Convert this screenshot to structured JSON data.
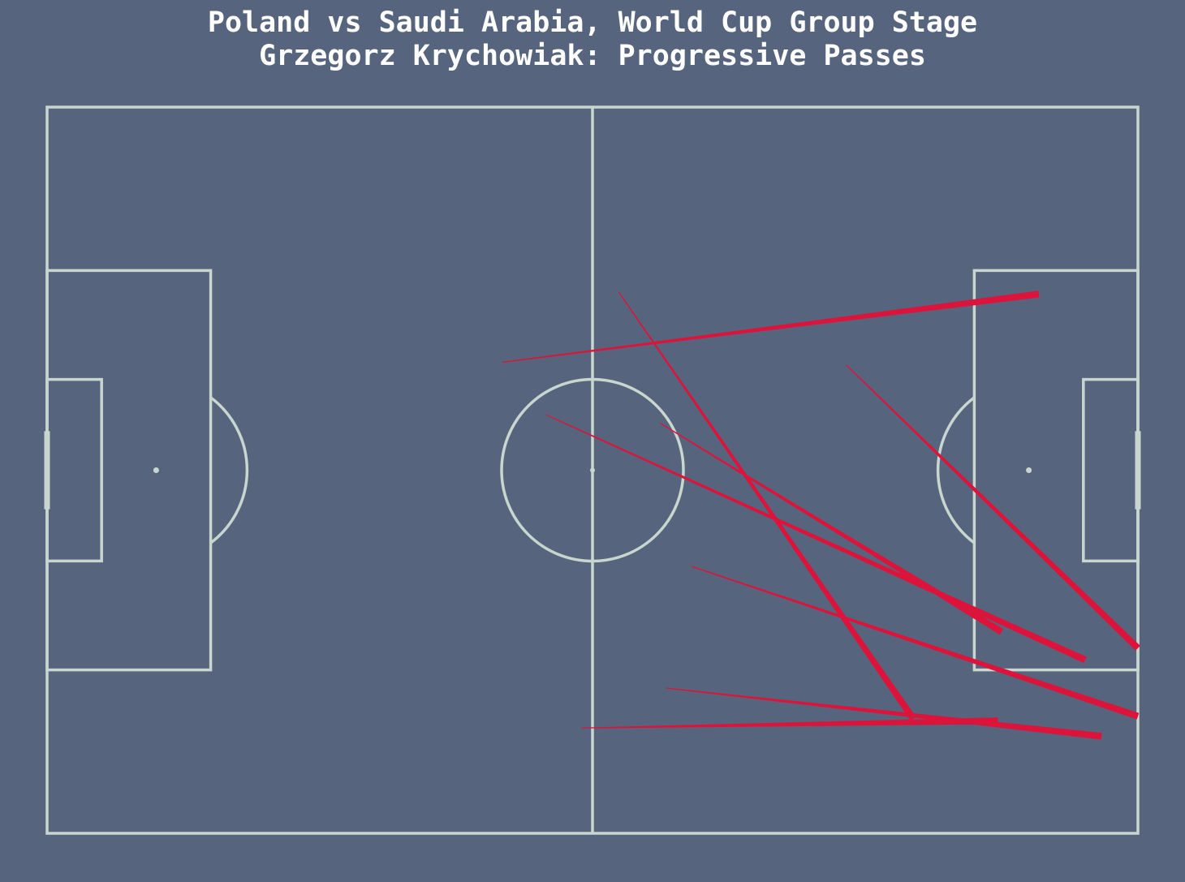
{
  "title": {
    "line1": "Poland vs Saudi Arabia, World Cup Group Stage",
    "line2": "Grzegorz Krychowiak: Progressive Passes"
  },
  "colors": {
    "background": "#56657d",
    "pitch_lines": "#c9d6d0",
    "pass": "#dc143c",
    "title": "#ffffff"
  },
  "chart_data": {
    "type": "scatter",
    "subtype": "pass-map",
    "title": "Poland vs Saudi Arabia, World Cup Group Stage",
    "subtitle": "Grzegorz Krychowiak: Progressive Passes",
    "pitch": {
      "length": 120,
      "width": 80,
      "units": "StatsBomb yards"
    },
    "xlim": [
      0,
      120
    ],
    "ylim": [
      0,
      80
    ],
    "passes": [
      {
        "x": 50.1,
        "y": 28.1,
        "end_x": 109.1,
        "end_y": 20.6
      },
      {
        "x": 62.9,
        "y": 20.4,
        "end_x": 95.3,
        "end_y": 67.4
      },
      {
        "x": 87.9,
        "y": 28.4,
        "end_x": 120.0,
        "end_y": 59.6
      },
      {
        "x": 54.9,
        "y": 33.9,
        "end_x": 114.2,
        "end_y": 60.9
      },
      {
        "x": 67.4,
        "y": 34.8,
        "end_x": 105.0,
        "end_y": 57.8
      },
      {
        "x": 70.9,
        "y": 50.6,
        "end_x": 120.0,
        "end_y": 67.1
      },
      {
        "x": 68.1,
        "y": 64.0,
        "end_x": 116.0,
        "end_y": 69.3
      },
      {
        "x": 58.8,
        "y": 68.4,
        "end_x": 104.6,
        "end_y": 67.6
      }
    ]
  }
}
